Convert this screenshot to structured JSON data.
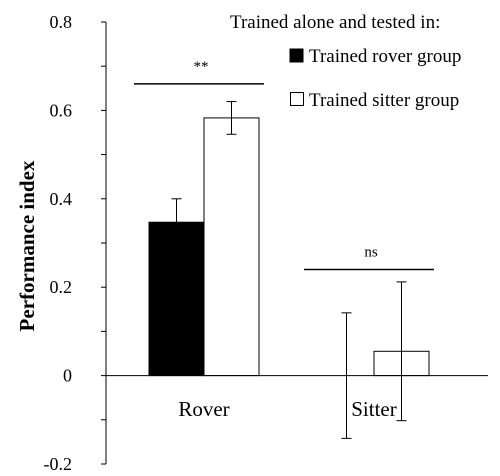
{
  "chart_data": {
    "type": "bar",
    "title": "",
    "ylabel": "Performance index",
    "xlabel": "",
    "ylim": [
      -0.2,
      0.8
    ],
    "yticks": [
      {
        "value": -0.2,
        "label": "-0.2"
      },
      {
        "value": 0,
        "label": "0"
      },
      {
        "value": 0.2,
        "label": "0.2"
      },
      {
        "value": 0.4,
        "label": "0.4"
      },
      {
        "value": 0.6,
        "label": "0.6"
      },
      {
        "value": 0.8,
        "label": "0.8"
      }
    ],
    "y_minor_step": 0.1,
    "categories": [
      "Rover",
      "Sitter"
    ],
    "legend": {
      "placement": "top-right",
      "title": "Trained alone and tested in:"
    },
    "series": [
      {
        "name": "Trained rover group",
        "color": "#000000",
        "values": [
          0.347,
          0.0
        ],
        "errors": [
          0.053,
          0.142
        ]
      },
      {
        "name": "Trained sitter group",
        "color": "#ffffff",
        "values": [
          0.583,
          0.055
        ],
        "errors": [
          0.037,
          0.157
        ]
      }
    ],
    "annotations": [
      {
        "category_index": 0,
        "text": "**",
        "y": 0.66
      },
      {
        "category_index": 1,
        "text": "ns",
        "y": 0.24
      }
    ],
    "grid": false
  }
}
